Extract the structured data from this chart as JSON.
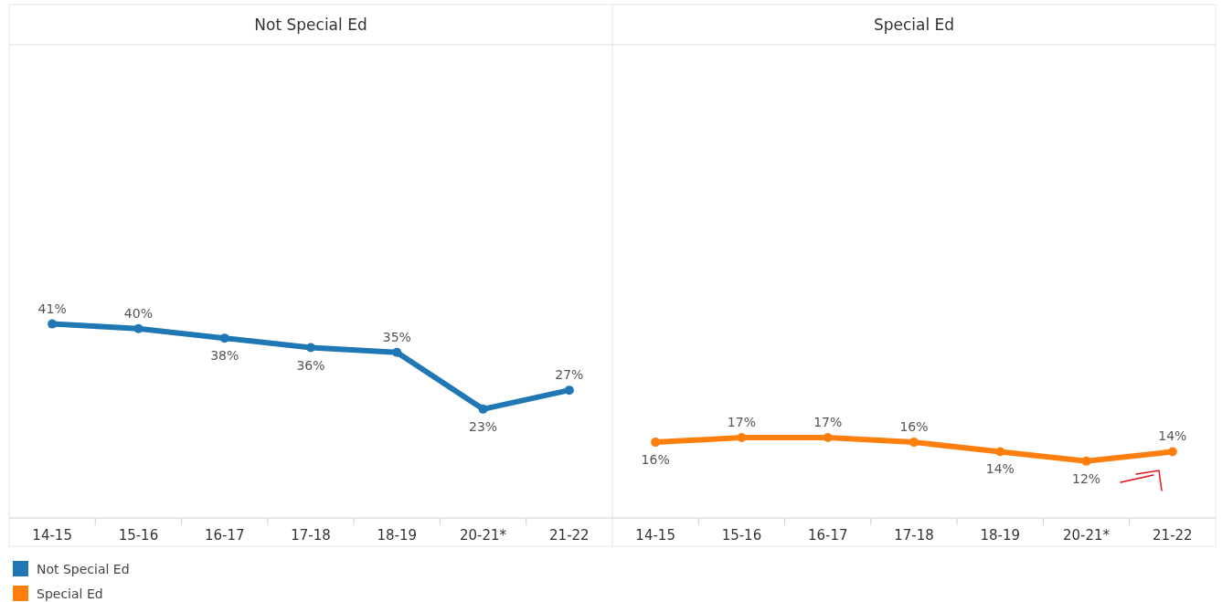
{
  "chart_data": [
    {
      "type": "line",
      "title": "Not Special Ed",
      "categories": [
        "14-15",
        "15-16",
        "16-17",
        "17-18",
        "18-19",
        "20-21*",
        "21-22"
      ],
      "series": [
        {
          "name": "Not Special Ed",
          "color": "#1f77b4",
          "values": [
            41,
            40,
            38,
            36,
            35,
            23,
            27
          ],
          "value_labels": [
            "41%",
            "40%",
            "38%",
            "36%",
            "35%",
            "23%",
            "27%"
          ]
        }
      ],
      "tick_labels": "x",
      "marker": "circle",
      "legend": "bottom left"
    },
    {
      "type": "line",
      "title": "Special Ed",
      "categories": [
        "14-15",
        "15-16",
        "16-17",
        "17-18",
        "18-19",
        "20-21*",
        "21-22"
      ],
      "series": [
        {
          "name": "Special Ed",
          "color": "#ff7f0e",
          "values": [
            16,
            17,
            17,
            16,
            14,
            12,
            14
          ],
          "value_labels": [
            "16%",
            "17%",
            "17%",
            "16%",
            "14%",
            "12%",
            "14%"
          ]
        }
      ],
      "tick_labels": "x",
      "marker": "circle",
      "legend": "bottom left"
    }
  ]
}
